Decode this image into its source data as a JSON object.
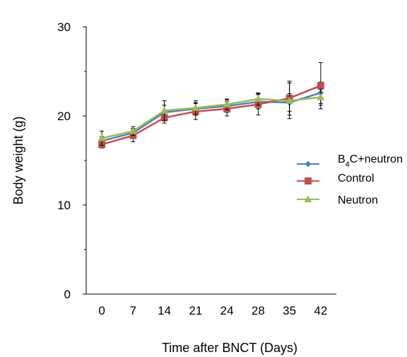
{
  "chart_data": {
    "type": "line",
    "title": "",
    "xlabel": "Time after BNCT (Days)",
    "ylabel": "Body weight (g)",
    "categories": [
      "0",
      "7",
      "14",
      "21",
      "24",
      "28",
      "35",
      "42"
    ],
    "ylim": [
      0,
      30
    ],
    "yticks": [
      "0",
      "10",
      "20",
      "30"
    ],
    "grid": false,
    "legend_position": "right",
    "series": [
      {
        "name": "B4C+neutron",
        "legend_main": "B",
        "legend_sub": "4",
        "legend_rest": "C+neutron",
        "color": "#4f81bd",
        "marker": "diamond",
        "values": [
          17.2,
          18.1,
          20.4,
          20.8,
          21.1,
          21.6,
          21.5,
          22.6
        ],
        "errors": [
          0.5,
          0.5,
          0.8,
          0.7,
          0.7,
          0.8,
          1.0,
          1.2
        ]
      },
      {
        "name": "Control",
        "color": "#c0504d",
        "marker": "square",
        "values": [
          16.8,
          17.8,
          19.8,
          20.5,
          20.8,
          21.3,
          22.0,
          23.4
        ],
        "errors": [
          0.4,
          0.7,
          0.6,
          0.9,
          0.8,
          1.2,
          1.9,
          2.6
        ]
      },
      {
        "name": "Neutron",
        "color": "#9bbb59",
        "marker": "triangle",
        "values": [
          17.5,
          18.3,
          20.6,
          20.9,
          21.3,
          21.9,
          21.7,
          22.1
        ],
        "errors": [
          0.8,
          0.5,
          1.1,
          0.8,
          0.6,
          0.7,
          2.0,
          0.9
        ]
      }
    ]
  }
}
